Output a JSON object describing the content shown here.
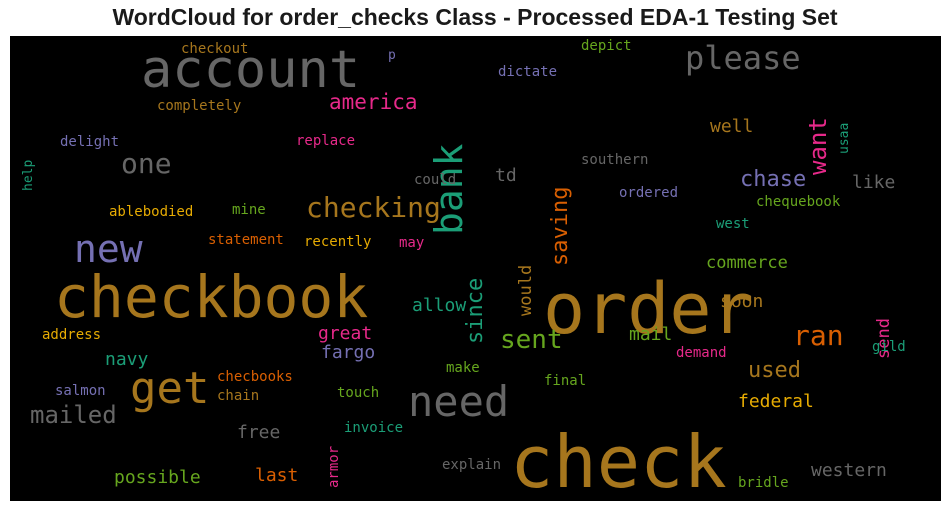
{
  "title": "WordCloud for order_checks Class - Processed EDA-1 Testing Set",
  "colors": {
    "background": "#000000",
    "brown": "#a6761d",
    "orange": "#d95f02",
    "gold": "#e6ab02",
    "green": "#66a61e",
    "teal": "#1b9e77",
    "purple": "#7570b3",
    "magenta": "#e7298a",
    "gray": "#666666"
  },
  "words": [
    {
      "text": "check",
      "color": "brown"
    },
    {
      "text": "order",
      "color": "brown"
    },
    {
      "text": "checkbook",
      "color": "brown"
    },
    {
      "text": "account",
      "color": "gray"
    },
    {
      "text": "new",
      "color": "purple"
    },
    {
      "text": "get",
      "color": "brown"
    },
    {
      "text": "need",
      "color": "gray"
    },
    {
      "text": "bank",
      "color": "teal"
    },
    {
      "text": "please",
      "color": "gray"
    },
    {
      "text": "checking",
      "color": "brown"
    },
    {
      "text": "one",
      "color": "gray"
    },
    {
      "text": "america",
      "color": "magenta"
    },
    {
      "text": "want",
      "color": "magenta"
    },
    {
      "text": "sent",
      "color": "green"
    },
    {
      "text": "ran",
      "color": "orange"
    },
    {
      "text": "saving",
      "color": "orange"
    },
    {
      "text": "since",
      "color": "teal"
    },
    {
      "text": "chase",
      "color": "purple"
    },
    {
      "text": "mailed",
      "color": "gray"
    },
    {
      "text": "used",
      "color": "brown"
    },
    {
      "text": "well",
      "color": "brown"
    },
    {
      "text": "like",
      "color": "gray"
    },
    {
      "text": "td",
      "color": "gray"
    },
    {
      "text": "would",
      "color": "brown"
    },
    {
      "text": "commerce",
      "color": "green"
    },
    {
      "text": "soon",
      "color": "brown"
    },
    {
      "text": "send",
      "color": "magenta"
    },
    {
      "text": "great",
      "color": "magenta"
    },
    {
      "text": "allow",
      "color": "teal"
    },
    {
      "text": "fargo",
      "color": "purple"
    },
    {
      "text": "navy",
      "color": "teal"
    },
    {
      "text": "mail",
      "color": "green"
    },
    {
      "text": "federal",
      "color": "gold"
    },
    {
      "text": "free",
      "color": "gray"
    },
    {
      "text": "possible",
      "color": "green"
    },
    {
      "text": "last",
      "color": "orange"
    },
    {
      "text": "western",
      "color": "gray"
    },
    {
      "text": "checkout",
      "color": "brown"
    },
    {
      "text": "p",
      "color": "purple"
    },
    {
      "text": "depict",
      "color": "green"
    },
    {
      "text": "dictate",
      "color": "purple"
    },
    {
      "text": "completely",
      "color": "brown"
    },
    {
      "text": "usaa",
      "color": "teal"
    },
    {
      "text": "help",
      "color": "teal"
    },
    {
      "text": "delight",
      "color": "purple"
    },
    {
      "text": "replace",
      "color": "magenta"
    },
    {
      "text": "southern",
      "color": "gray"
    },
    {
      "text": "could",
      "color": "gray"
    },
    {
      "text": "ordered",
      "color": "purple"
    },
    {
      "text": "ablebodied",
      "color": "gold"
    },
    {
      "text": "mine",
      "color": "green"
    },
    {
      "text": "chequebook",
      "color": "green"
    },
    {
      "text": "west",
      "color": "teal"
    },
    {
      "text": "statement",
      "color": "orange"
    },
    {
      "text": "recently",
      "color": "gold"
    },
    {
      "text": "may",
      "color": "magenta"
    },
    {
      "text": "address",
      "color": "gold"
    },
    {
      "text": "demand",
      "color": "magenta"
    },
    {
      "text": "gild",
      "color": "teal"
    },
    {
      "text": "make",
      "color": "green"
    },
    {
      "text": "checbooks",
      "color": "orange"
    },
    {
      "text": "salmon",
      "color": "purple"
    },
    {
      "text": "chain",
      "color": "brown"
    },
    {
      "text": "touch",
      "color": "green"
    },
    {
      "text": "final",
      "color": "green"
    },
    {
      "text": "armor",
      "color": "magenta"
    },
    {
      "text": "invoice",
      "color": "teal"
    },
    {
      "text": "explain",
      "color": "gray"
    },
    {
      "text": "bridle",
      "color": "green"
    }
  ]
}
